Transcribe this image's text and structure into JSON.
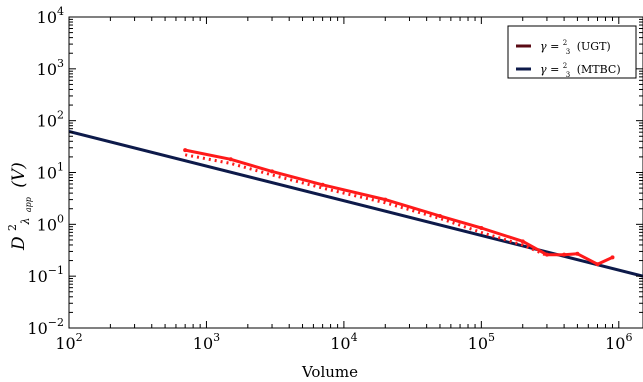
{
  "chart_data": {
    "type": "line",
    "xlabel": "Volume",
    "ylabel": "D^2_λapp(V)",
    "ylabel_main": "D",
    "ylabel_sup": "2",
    "ylabel_sub": "λ",
    "ylabel_subsub": "app",
    "ylabel_tail": "(V)",
    "x_scale": "log",
    "y_scale": "log",
    "xlim": [
      100,
      1500000
    ],
    "ylim": [
      0.01,
      10000
    ],
    "x_ticks": [
      {
        "value": 100,
        "base": "10",
        "exp": "2"
      },
      {
        "value": 1000,
        "base": "10",
        "exp": "3"
      },
      {
        "value": 10000,
        "base": "10",
        "exp": "4"
      },
      {
        "value": 100000,
        "base": "10",
        "exp": "5"
      },
      {
        "value": 1000000,
        "base": "10",
        "exp": "6"
      }
    ],
    "y_ticks": [
      {
        "value": 0.01,
        "base": "10",
        "exp": "−2"
      },
      {
        "value": 0.1,
        "base": "10",
        "exp": "−1"
      },
      {
        "value": 1,
        "base": "10",
        "exp": "0"
      },
      {
        "value": 10,
        "base": "10",
        "exp": "1"
      },
      {
        "value": 100,
        "base": "10",
        "exp": "2"
      },
      {
        "value": 1000,
        "base": "10",
        "exp": "3"
      },
      {
        "value": 10000,
        "base": "10",
        "exp": "4"
      }
    ],
    "grid": false,
    "legend_position": "top-right",
    "legend": [
      {
        "label": "γ = 2/3 (UGT)",
        "gamma": "γ = ",
        "num": "2",
        "den": "3",
        "suffix": "(UGT)",
        "color": "#5a0a14"
      },
      {
        "label": "γ = 2/3 (MTBC)",
        "gamma": "γ = ",
        "num": "2",
        "den": "3",
        "suffix": "(MTBC)",
        "color": "#0d1a4a"
      }
    ],
    "series": [
      {
        "style": "fit-line",
        "color": "#0d1a4a",
        "x": [
          100,
          1500000
        ],
        "y": [
          62,
          0.1
        ]
      },
      {
        "style": "solid",
        "color": "#ff1a1a",
        "x": [
          700,
          1500,
          3000,
          7000,
          20000,
          50000,
          100000,
          200000,
          300000,
          400000,
          500000,
          700000,
          900000
        ],
        "y": [
          27,
          18,
          10.5,
          5.8,
          3.0,
          1.45,
          0.85,
          0.47,
          0.26,
          0.26,
          0.27,
          0.17,
          0.23
        ]
      },
      {
        "style": "dotted",
        "color": "#ff1a1a",
        "x": [
          700,
          1500,
          3000,
          7000,
          20000,
          50000,
          100000,
          200000,
          300000
        ],
        "y": [
          22,
          15,
          9.0,
          5.0,
          2.6,
          1.3,
          0.7,
          0.4,
          0.25
        ]
      }
    ]
  }
}
